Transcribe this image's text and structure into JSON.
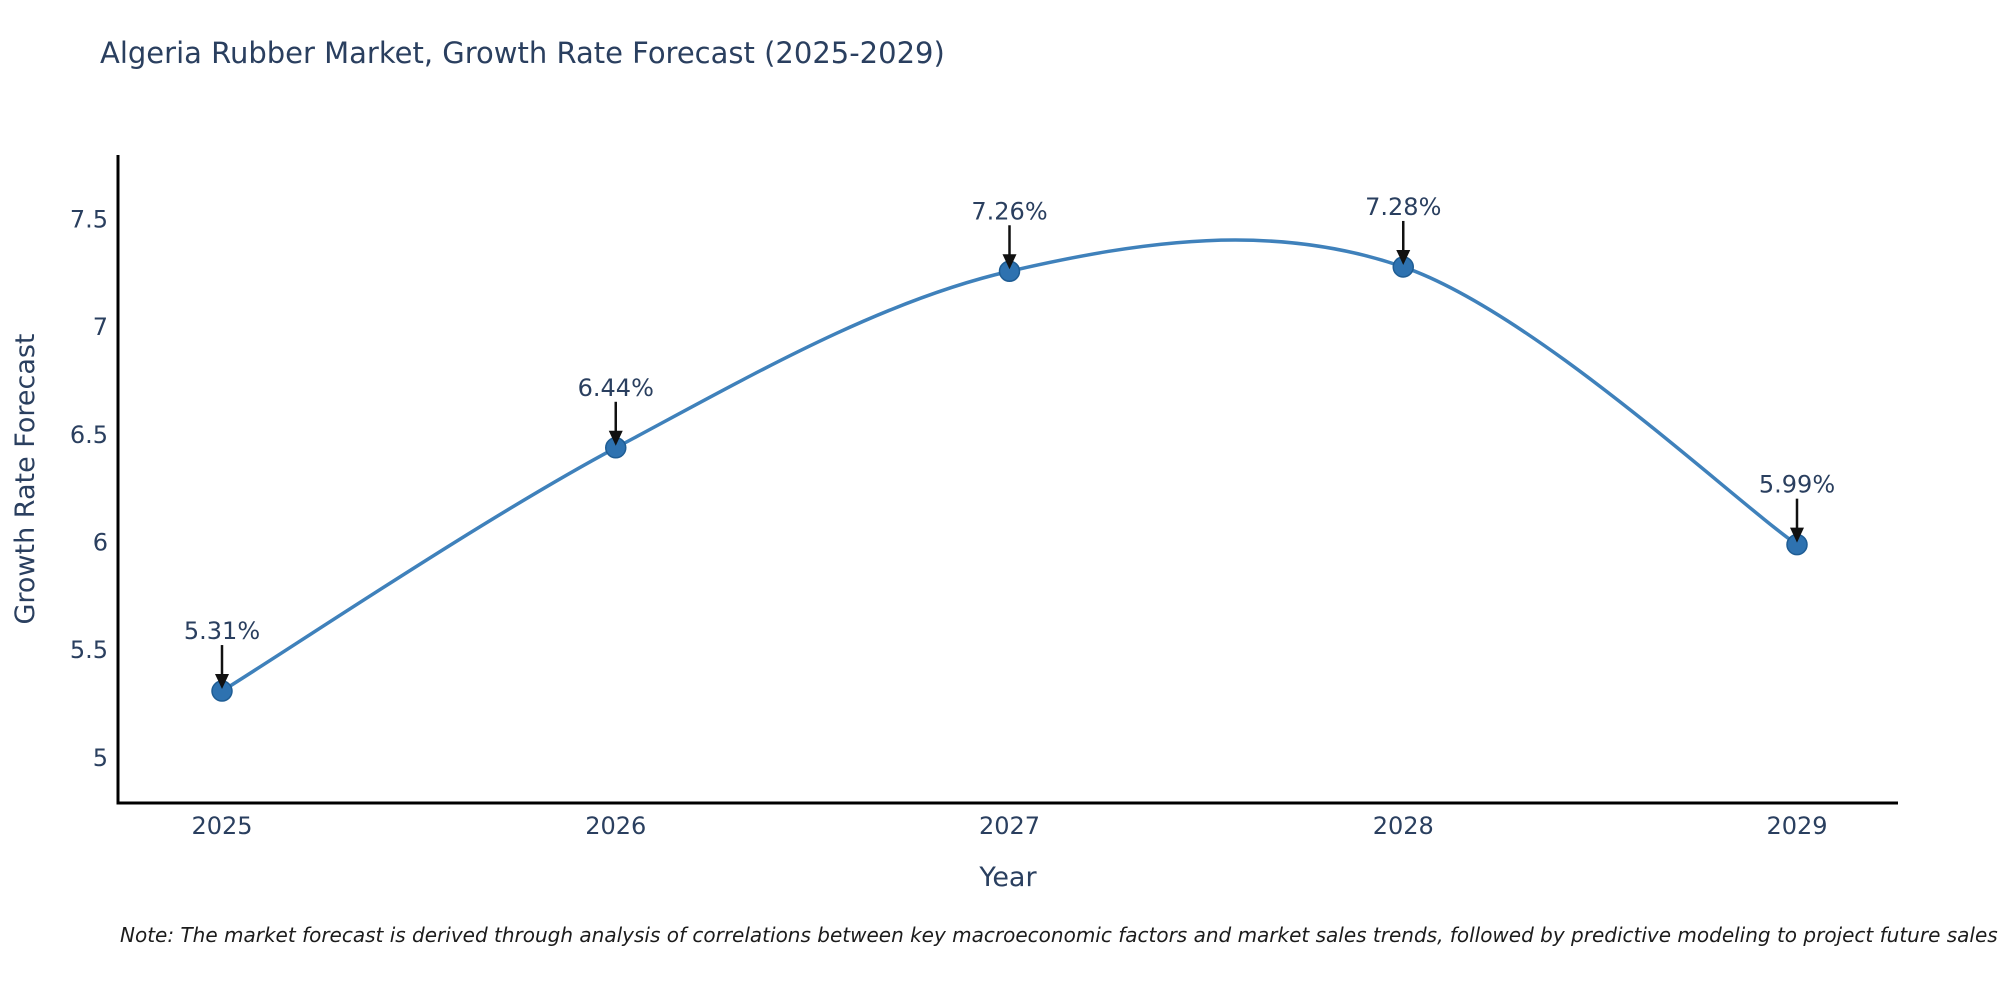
{
  "title": "Algeria Rubber Market, Growth Rate Forecast (2025-2029)",
  "note": "Note: The market forecast is derived through analysis of correlations between key macroeconomic factors and market sales trends, followed by predictive modeling to project future sales",
  "chart_data": {
    "type": "line",
    "title": "Algeria Rubber Market, Growth Rate Forecast (2025-2029)",
    "xlabel": "Year",
    "ylabel": "Growth Rate Forecast",
    "categories": [
      "2025",
      "2026",
      "2027",
      "2028",
      "2029"
    ],
    "series": [
      {
        "name": "Growth Rate Forecast",
        "values": [
          5.31,
          6.44,
          7.26,
          7.28,
          5.99
        ],
        "point_labels": [
          "5.31%",
          "6.44%",
          "7.26%",
          "7.28%",
          "5.99%"
        ]
      }
    ],
    "ytick_values": [
      5,
      5.5,
      6,
      6.5,
      7,
      7.5
    ],
    "ytick_labels": [
      "5",
      "5.5",
      "6",
      "6.5",
      "7",
      "7.5"
    ],
    "ylim": [
      4.79,
      7.8
    ],
    "line_shape": "spline",
    "grid": false,
    "legend_position": "none",
    "annotation_style": "arrow-down-to-point",
    "colors": {
      "line": "#3f81bb",
      "marker": "#2e72b0",
      "marker_edge": "#1f5d94",
      "arrow": "#111111",
      "chart_text": "#2a3f5f",
      "axis_line": "#000000",
      "note_text": "#1c1c1c",
      "background": "#ffffff"
    }
  }
}
